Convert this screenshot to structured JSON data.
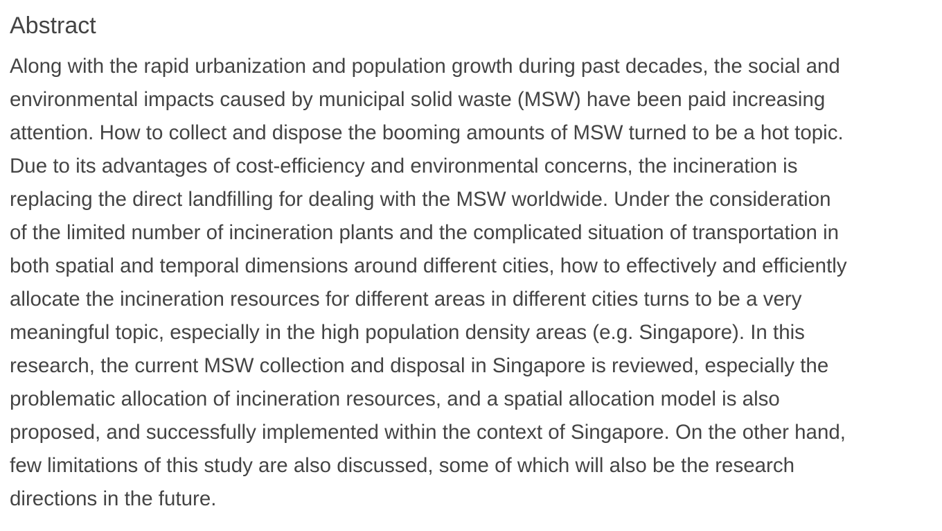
{
  "abstract": {
    "heading": "Abstract",
    "lines": [
      "Along with the rapid urbanization and population growth during past decades, the social and",
      "environmental impacts caused by municipal solid waste (MSW) have been paid increasing",
      "attention. How to collect and dispose the booming amounts of MSW turned to be a hot topic.",
      "Due to its advantages of cost-efficiency and environmental concerns, the incineration is",
      "replacing the direct landfilling for dealing with the MSW worldwide. Under the consideration",
      "of the limited number of incineration plants and the complicated situation of transportation in",
      "both spatial and temporal dimensions around different cities, how to effectively and efficiently",
      "allocate the incineration resources for different areas in different cities turns to be a very",
      "meaningful topic, especially in the high population density areas (e.g. Singapore). In this",
      "research, the current MSW collection and disposal in Singapore is reviewed, especially the",
      "problematic allocation of incineration resources, and a spatial allocation model is also",
      "proposed, and successfully implemented within the context of Singapore. On the other hand,",
      "few limitations of this study are also discussed, some of which will also be the research",
      "directions in the future."
    ]
  }
}
